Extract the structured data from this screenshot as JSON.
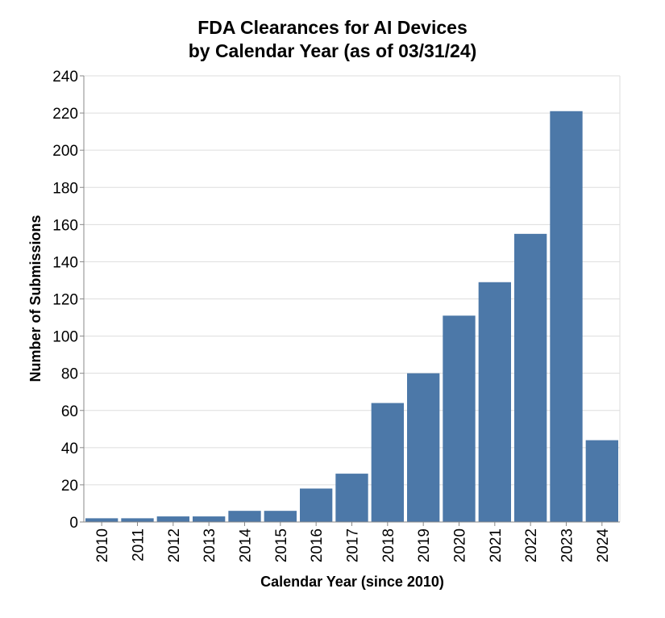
{
  "chart_data": {
    "type": "bar",
    "title": [
      "FDA Clearances for AI Devices",
      "by Calendar Year (as of 03/31/24)"
    ],
    "xlabel": "Calendar Year (since 2010)",
    "ylabel": "Number of Submissions",
    "categories": [
      "2010",
      "2011",
      "2012",
      "2013",
      "2014",
      "2015",
      "2016",
      "2017",
      "2018",
      "2019",
      "2020",
      "2021",
      "2022",
      "2023",
      "2024"
    ],
    "values": [
      2,
      2,
      3,
      3,
      6,
      6,
      18,
      26,
      64,
      80,
      111,
      129,
      155,
      221,
      44
    ],
    "ylim": [
      0,
      240
    ],
    "yticks": [
      "0",
      "20",
      "40",
      "60",
      "80",
      "100",
      "120",
      "140",
      "160",
      "180",
      "200",
      "220",
      "240"
    ],
    "grid": true,
    "bar_color": "#4c78a8"
  }
}
